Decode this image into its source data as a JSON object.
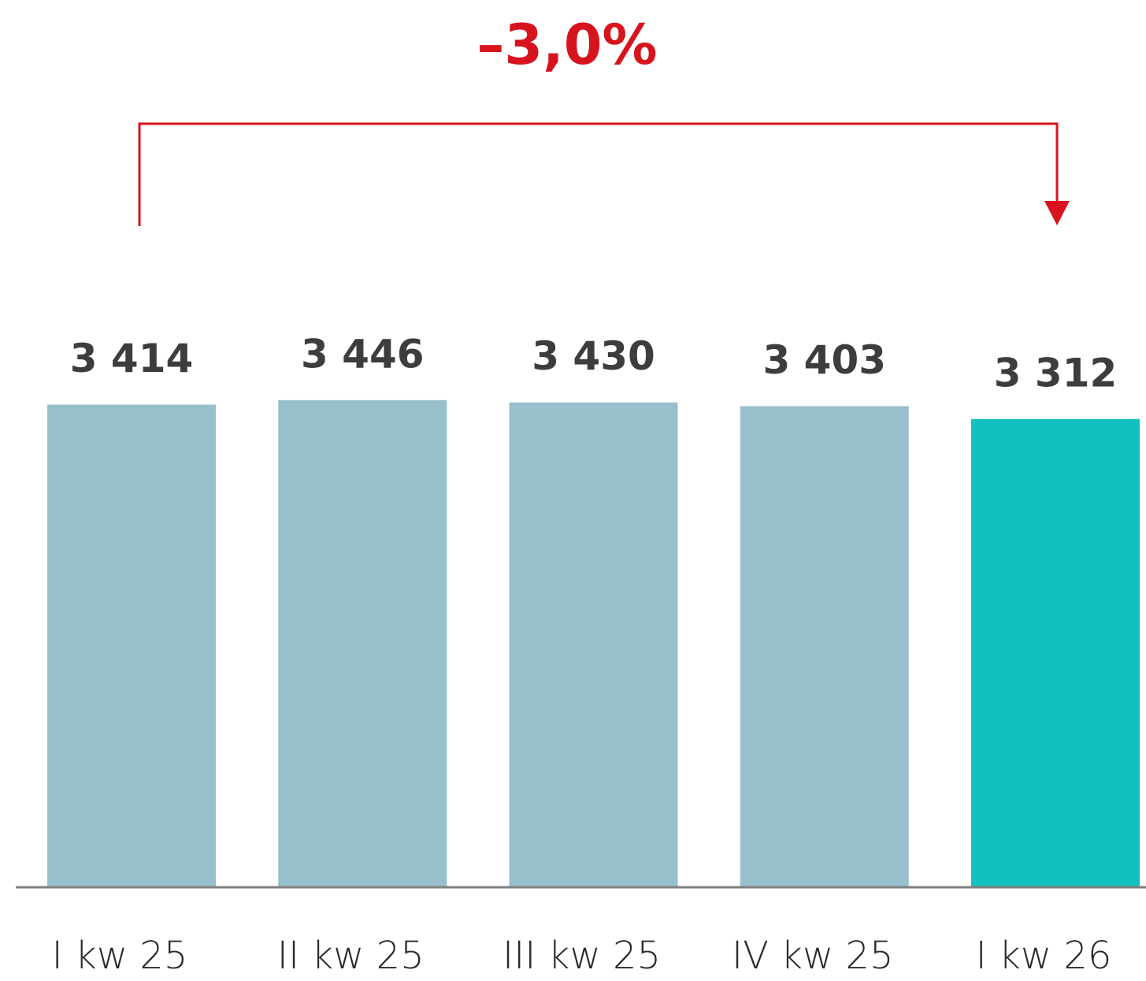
{
  "chart_data": {
    "type": "bar",
    "annotation": "–3,0%",
    "categories": [
      "I kw 25",
      "II kw 25",
      "III kw 25",
      "IV kw 25",
      "I kw 26"
    ],
    "values": [
      3414,
      3446,
      3430,
      3403,
      3312
    ],
    "value_labels": [
      "3 414",
      "3 446",
      "3 430",
      "3 403",
      "3 312"
    ],
    "colors": [
      "#98bfcc",
      "#98bfcc",
      "#98bfcc",
      "#98bfcc",
      "#13c0c0"
    ],
    "annotation_color": "#d7141e",
    "ylim": [
      0,
      5600
    ]
  }
}
